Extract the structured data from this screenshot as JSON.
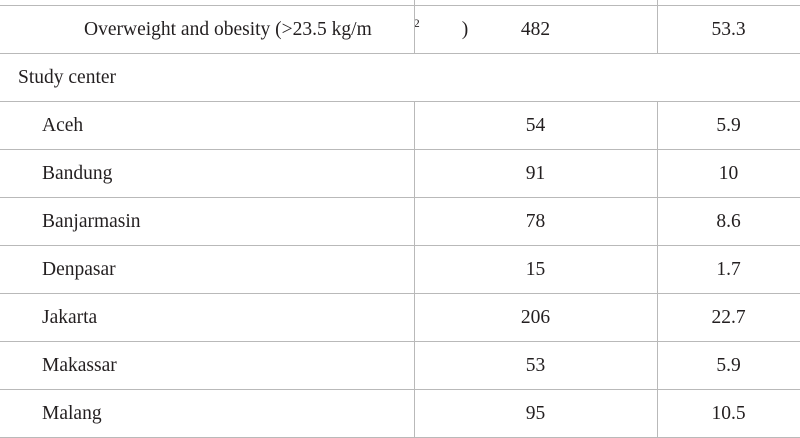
{
  "table": {
    "rows": [
      {
        "kind": "data",
        "label": "Overweight and obesity (>23.5 kg/m",
        "label_sup": "2",
        "label_tail": ")",
        "n": "482",
        "pct": "53.3"
      },
      {
        "kind": "section",
        "label": "Study center"
      },
      {
        "kind": "data",
        "label": "Aceh",
        "n": "54",
        "pct": "5.9"
      },
      {
        "kind": "data",
        "label": "Bandung",
        "n": "91",
        "pct": "10"
      },
      {
        "kind": "data",
        "label": "Banjarmasin",
        "n": "78",
        "pct": "8.6"
      },
      {
        "kind": "data",
        "label": "Denpasar",
        "n": "15",
        "pct": "1.7"
      },
      {
        "kind": "data",
        "label": "Jakarta",
        "n": "206",
        "pct": "22.7"
      },
      {
        "kind": "data",
        "label": "Makassar",
        "n": "53",
        "pct": "5.9"
      },
      {
        "kind": "data",
        "label": "Malang",
        "n": "95",
        "pct": "10.5"
      }
    ]
  }
}
